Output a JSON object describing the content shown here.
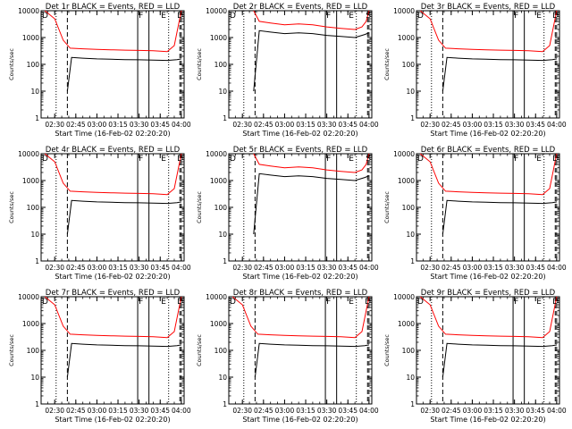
{
  "chart_data": {
    "type": "line",
    "yscale": "log",
    "ylim": [
      1,
      10000
    ],
    "y_ticks": [
      "1",
      "10",
      "100",
      "1000",
      "10000"
    ],
    "ylabel": "Counts/sec",
    "x_ticks": [
      "02:30",
      "02:45",
      "03:00",
      "03:15",
      "03:30",
      "03:45",
      "04:00"
    ],
    "x_tick_values": [
      "02:30",
      "02:45",
      "03:00",
      "03:15",
      "03:30",
      "03:45",
      "04:00"
    ],
    "xlim": [
      "02:20:20",
      "04:02"
    ],
    "xlabel": "Start Time (16-Feb-02 02:20:20)",
    "series_colors": {
      "events": "#000000",
      "lld": "#ff0000"
    },
    "panels": [
      {
        "title": "Det 1r BLACK = Events, RED = LLD",
        "markers": {
          "left": "D",
          "F": "03:29",
          "E": "03:45",
          "right": "D"
        },
        "dotted": [
          "02:31",
          "03:51"
        ],
        "dashed": [
          "02:39",
          "03:59",
          "04:00"
        ],
        "solid": [
          "03:29",
          "03:37"
        ],
        "series": [
          {
            "name": "Events",
            "x": [
              "02:39",
              "02:42",
              "02:50",
              "03:00",
              "03:10",
              "03:20",
              "03:30",
              "03:40",
              "03:50",
              "03:57",
              "04:00"
            ],
            "values": [
              10,
              180,
              170,
              160,
              155,
              150,
              148,
              145,
              140,
              150,
              160
            ]
          },
          {
            "name": "LLD",
            "x": [
              "02:23",
              "02:30",
              "02:36",
              "02:41",
              "02:50",
              "03:00",
              "03:10",
              "03:20",
              "03:30",
              "03:40",
              "03:50",
              "03:55",
              "03:58",
              "04:00"
            ],
            "values": [
              10000,
              5000,
              800,
              400,
              380,
              360,
              350,
              340,
              330,
              320,
              300,
              500,
              3000,
              10000
            ]
          }
        ]
      },
      {
        "title": "Det 2r BLACK = Events, RED = LLD",
        "markers": {
          "left": "D",
          "F": "03:29",
          "E": "03:45",
          "right": "S"
        },
        "dotted": [
          "02:31",
          "03:51"
        ],
        "dashed": [
          "02:39",
          "03:59",
          "04:00"
        ],
        "solid": [
          "03:29",
          "03:37"
        ],
        "series": [
          {
            "name": "Events",
            "x": [
              "02:38",
              "02:42",
              "02:50",
              "03:00",
              "03:10",
              "03:20",
              "03:30",
              "03:40",
              "03:50",
              "03:57",
              "04:00"
            ],
            "values": [
              10,
              1800,
              1600,
              1400,
              1500,
              1400,
              1200,
              1100,
              1000,
              1300,
              1500
            ]
          },
          {
            "name": "LLD",
            "x": [
              "02:38",
              "02:42",
              "02:50",
              "03:00",
              "03:10",
              "03:20",
              "03:30",
              "03:40",
              "03:50",
              "03:55",
              "03:58",
              "04:00"
            ],
            "values": [
              10000,
              4000,
              3500,
              3000,
              3200,
              3000,
              2500,
              2200,
              2000,
              2500,
              4000,
              10000
            ]
          }
        ]
      },
      {
        "title": "Det 3r BLACK = Events, RED = LLD",
        "markers": {
          "left": "D",
          "F": "03:29",
          "E": "03:45",
          "right": "D"
        },
        "dotted": [
          "02:31",
          "03:51"
        ],
        "dashed": [
          "02:39",
          "03:59",
          "04:00"
        ],
        "solid": [
          "03:29",
          "03:37"
        ],
        "series": [
          {
            "name": "Events",
            "x": [
              "02:39",
              "02:42",
              "02:50",
              "03:00",
              "03:10",
              "03:20",
              "03:30",
              "03:40",
              "03:50",
              "03:57",
              "04:00"
            ],
            "values": [
              10,
              180,
              170,
              160,
              155,
              150,
              148,
              145,
              140,
              150,
              160
            ]
          },
          {
            "name": "LLD",
            "x": [
              "02:23",
              "02:30",
              "02:36",
              "02:41",
              "02:50",
              "03:00",
              "03:10",
              "03:20",
              "03:30",
              "03:40",
              "03:50",
              "03:55",
              "03:58",
              "04:00"
            ],
            "values": [
              10000,
              5000,
              800,
              400,
              380,
              360,
              350,
              340,
              330,
              320,
              300,
              500,
              3000,
              10000
            ]
          }
        ]
      },
      {
        "title": "Det 4r BLACK = Events, RED = LLD",
        "markers": {
          "left": "D",
          "F": "03:29",
          "E": "03:45",
          "right": "D"
        },
        "dotted": [
          "02:31",
          "03:51"
        ],
        "dashed": [
          "02:39",
          "03:59",
          "04:00"
        ],
        "solid": [
          "03:29",
          "03:37"
        ],
        "series": [
          {
            "name": "Events",
            "x": [
              "02:39",
              "02:42",
              "02:50",
              "03:00",
              "03:10",
              "03:20",
              "03:30",
              "03:40",
              "03:50",
              "03:57",
              "04:00"
            ],
            "values": [
              10,
              180,
              170,
              160,
              155,
              150,
              148,
              145,
              140,
              150,
              160
            ]
          },
          {
            "name": "LLD",
            "x": [
              "02:23",
              "02:30",
              "02:36",
              "02:41",
              "02:50",
              "03:00",
              "03:10",
              "03:20",
              "03:30",
              "03:40",
              "03:50",
              "03:55",
              "03:58",
              "04:00"
            ],
            "values": [
              10000,
              5000,
              800,
              400,
              380,
              360,
              350,
              340,
              330,
              320,
              300,
              500,
              3000,
              10000
            ]
          }
        ]
      },
      {
        "title": "Det 5r BLACK = Events, RED = LLD",
        "markers": {
          "left": "D",
          "F": "03:29",
          "E": "03:45",
          "right": "S"
        },
        "dotted": [
          "02:31",
          "03:51"
        ],
        "dashed": [
          "02:39",
          "03:59",
          "04:00"
        ],
        "solid": [
          "03:29",
          "03:37"
        ],
        "series": [
          {
            "name": "Events",
            "x": [
              "02:38",
              "02:42",
              "02:50",
              "03:00",
              "03:10",
              "03:20",
              "03:30",
              "03:40",
              "03:50",
              "03:57",
              "04:00"
            ],
            "values": [
              10,
              1800,
              1600,
              1400,
              1500,
              1400,
              1200,
              1100,
              1000,
              1300,
              1500
            ]
          },
          {
            "name": "LLD",
            "x": [
              "02:38",
              "02:42",
              "02:50",
              "03:00",
              "03:10",
              "03:20",
              "03:30",
              "03:40",
              "03:50",
              "03:55",
              "03:58",
              "04:00"
            ],
            "values": [
              10000,
              4000,
              3500,
              3000,
              3200,
              3000,
              2500,
              2200,
              2000,
              2500,
              4000,
              10000
            ]
          }
        ]
      },
      {
        "title": "Det 6r BLACK = Events, RED = LLD",
        "markers": {
          "left": "D",
          "F": "03:29",
          "E": "03:45",
          "right": "D"
        },
        "dotted": [
          "02:31",
          "03:51"
        ],
        "dashed": [
          "02:39",
          "03:59",
          "04:00"
        ],
        "solid": [
          "03:29",
          "03:37"
        ],
        "series": [
          {
            "name": "Events",
            "x": [
              "02:39",
              "02:42",
              "02:50",
              "03:00",
              "03:10",
              "03:20",
              "03:30",
              "03:40",
              "03:50",
              "03:57",
              "04:00"
            ],
            "values": [
              10,
              180,
              170,
              160,
              155,
              150,
              148,
              145,
              140,
              150,
              160
            ]
          },
          {
            "name": "LLD",
            "x": [
              "02:23",
              "02:30",
              "02:36",
              "02:41",
              "02:50",
              "03:00",
              "03:10",
              "03:20",
              "03:30",
              "03:40",
              "03:50",
              "03:55",
              "03:58",
              "04:00"
            ],
            "values": [
              10000,
              5000,
              800,
              400,
              380,
              360,
              350,
              340,
              330,
              320,
              300,
              500,
              3000,
              10000
            ]
          }
        ]
      },
      {
        "title": "Det 7r BLACK = Events, RED = LLD",
        "markers": {
          "left": "D",
          "F": "03:29",
          "E": "03:45",
          "right": "D"
        },
        "dotted": [
          "02:31",
          "03:51"
        ],
        "dashed": [
          "02:39",
          "03:59",
          "04:00"
        ],
        "solid": [
          "03:29",
          "03:37"
        ],
        "series": [
          {
            "name": "Events",
            "x": [
              "02:39",
              "02:42",
              "02:50",
              "03:00",
              "03:10",
              "03:20",
              "03:30",
              "03:40",
              "03:50",
              "03:57",
              "04:00"
            ],
            "values": [
              10,
              180,
              170,
              160,
              155,
              150,
              148,
              145,
              140,
              150,
              160
            ]
          },
          {
            "name": "LLD",
            "x": [
              "02:23",
              "02:30",
              "02:36",
              "02:41",
              "02:50",
              "03:00",
              "03:10",
              "03:20",
              "03:30",
              "03:40",
              "03:50",
              "03:55",
              "03:58",
              "04:00"
            ],
            "values": [
              10000,
              5000,
              800,
              400,
              380,
              360,
              350,
              340,
              330,
              320,
              300,
              500,
              3000,
              10000
            ]
          }
        ]
      },
      {
        "title": "Det 8r BLACK = Events, RED = LLD",
        "markers": {
          "left": "D",
          "F": "03:29",
          "E": "03:45",
          "right": "D"
        },
        "dotted": [
          "02:31",
          "03:51"
        ],
        "dashed": [
          "02:39",
          "03:59",
          "04:00"
        ],
        "solid": [
          "03:29",
          "03:37"
        ],
        "series": [
          {
            "name": "Events",
            "x": [
              "02:39",
              "02:42",
              "02:50",
              "03:00",
              "03:10",
              "03:20",
              "03:30",
              "03:40",
              "03:50",
              "03:57",
              "04:00"
            ],
            "values": [
              10,
              180,
              170,
              160,
              155,
              150,
              148,
              145,
              140,
              150,
              160
            ]
          },
          {
            "name": "LLD",
            "x": [
              "02:23",
              "02:30",
              "02:36",
              "02:41",
              "02:50",
              "03:00",
              "03:10",
              "03:20",
              "03:30",
              "03:40",
              "03:50",
              "03:55",
              "03:58",
              "04:00"
            ],
            "values": [
              10000,
              5000,
              800,
              400,
              380,
              360,
              350,
              340,
              330,
              320,
              300,
              500,
              3000,
              10000
            ]
          }
        ]
      },
      {
        "title": "Det 9r BLACK = Events, RED = LLD",
        "markers": {
          "left": "D",
          "F": "03:29",
          "E": "03:45",
          "right": "D"
        },
        "dotted": [
          "02:31",
          "03:51"
        ],
        "dashed": [
          "02:39",
          "03:59",
          "04:00"
        ],
        "solid": [
          "03:29",
          "03:37"
        ],
        "series": [
          {
            "name": "Events",
            "x": [
              "02:39",
              "02:42",
              "02:50",
              "03:00",
              "03:10",
              "03:20",
              "03:30",
              "03:40",
              "03:50",
              "03:57",
              "04:00"
            ],
            "values": [
              10,
              180,
              170,
              160,
              155,
              150,
              148,
              145,
              140,
              150,
              160
            ]
          },
          {
            "name": "LLD",
            "x": [
              "02:23",
              "02:30",
              "02:36",
              "02:41",
              "02:50",
              "03:00",
              "03:10",
              "03:20",
              "03:30",
              "03:40",
              "03:50",
              "03:55",
              "03:58",
              "04:00"
            ],
            "values": [
              10000,
              5000,
              800,
              400,
              380,
              360,
              350,
              340,
              330,
              320,
              300,
              500,
              3000,
              10000
            ]
          }
        ]
      }
    ]
  }
}
